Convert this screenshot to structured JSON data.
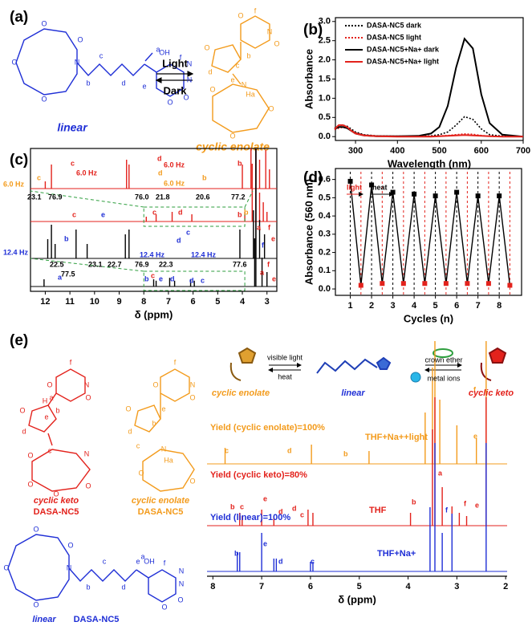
{
  "panel_a": {
    "label": "(a)",
    "linear": "linear",
    "cyclic_enolate": "cyclic enolate",
    "light": "Light",
    "dark": "Dark",
    "linear_atoms": [
      "N",
      "O",
      "O",
      "O",
      "O",
      "a",
      "OH",
      "f",
      "N",
      "N",
      "O",
      "O",
      "b",
      "c",
      "d",
      "e"
    ],
    "enolate_atoms": [
      "f",
      "N",
      "O",
      "O",
      "O",
      "d",
      "c",
      "b",
      "e",
      "N",
      "Ha",
      "O",
      "O",
      "O"
    ]
  },
  "chart_data": [
    {
      "type": "line",
      "panel_label": "(b)",
      "xlabel": "Wavelength (nm)",
      "ylabel": "Absorbance",
      "x": [
        250,
        260,
        270,
        280,
        290,
        300,
        320,
        350,
        400,
        450,
        480,
        500,
        520,
        540,
        560,
        580,
        600,
        620,
        650,
        700
      ],
      "xlim": [
        252,
        700
      ],
      "xticks": [
        300,
        400,
        500,
        600,
        700
      ],
      "ylim": [
        -0.1,
        3.1
      ],
      "yticks": [
        {
          "value": 0,
          "label": "0.0"
        },
        0.5,
        {
          "value": 1,
          "label": "1.0"
        },
        1.5,
        {
          "value": 2,
          "label": "2.0"
        },
        2.5,
        {
          "value": 3,
          "label": "3.0"
        }
      ],
      "legend": "upper-right",
      "series": [
        {
          "name": "DASA-NC5 dark",
          "color": "#000000",
          "dash": "dotted",
          "values": [
            0.22,
            0.28,
            0.3,
            0.27,
            0.2,
            0.12,
            0.05,
            0.02,
            0.01,
            0.01,
            0.02,
            0.05,
            0.12,
            0.3,
            0.52,
            0.45,
            0.2,
            0.05,
            0.01,
            0
          ]
        },
        {
          "name": "DASA-NC5 light",
          "color": "#e3221c",
          "dash": "dotted",
          "values": [
            0.18,
            0.22,
            0.24,
            0.22,
            0.16,
            0.1,
            0.04,
            0.02,
            0.01,
            0.01,
            0.01,
            0.02,
            0.03,
            0.05,
            0.07,
            0.06,
            0.03,
            0.01,
            0,
            0
          ]
        },
        {
          "name": "DASA-NC5+Na+ dark",
          "color": "#000000",
          "dash": "solid",
          "values": [
            0.2,
            0.25,
            0.25,
            0.22,
            0.15,
            0.08,
            0.03,
            0.01,
            0.01,
            0.02,
            0.08,
            0.25,
            0.8,
            1.8,
            2.55,
            2.3,
            1.1,
            0.35,
            0.05,
            0
          ]
        },
        {
          "name": "DASA-NC5+Na+ light",
          "color": "#e3221c",
          "dash": "solid",
          "values": [
            0.2,
            0.3,
            0.3,
            0.25,
            0.15,
            0.08,
            0.03,
            0.01,
            0,
            0,
            0,
            0.01,
            0.02,
            0.03,
            0.04,
            0.03,
            0.02,
            0.01,
            0,
            0
          ]
        }
      ]
    },
    {
      "type": "spectrum",
      "panel_label": "(c)",
      "xlabel": "δ (ppm)",
      "xlim": [
        12.6,
        2.6
      ],
      "xticks": [
        12,
        11,
        10,
        9,
        8,
        7,
        6,
        5,
        4,
        3
      ],
      "series": [
        {
          "color": "#e3221c",
          "x": [
            12.0,
            11.75,
            8.7,
            8.6,
            4.0,
            3.65,
            3.45,
            3.3,
            3.05,
            2.9
          ],
          "values": [
            1.5,
            5,
            6,
            5,
            5,
            20,
            30,
            6,
            8,
            4
          ]
        },
        {
          "color": "#e3221c",
          "x": [
            7.9,
            7.5,
            6.85,
            6.05,
            3.9,
            3.6,
            3.45,
            3.3,
            3.15,
            3.0
          ],
          "values": [
            1,
            1.5,
            2,
            1.5,
            2,
            12,
            30,
            6,
            4,
            2
          ]
        },
        {
          "color": "#000000",
          "x": [
            11.9,
            11.75,
            11.6,
            10.75,
            10.3,
            8.75,
            8.6,
            4.1,
            3.55,
            3.45,
            3.3,
            3.1
          ],
          "values": [
            4,
            7,
            3,
            6,
            3,
            5,
            6,
            6,
            10,
            30,
            8,
            5
          ]
        },
        {
          "color": "#000000",
          "x": [
            12.05,
            7.6,
            7.5,
            6.95,
            6.75,
            6.1,
            5.95,
            3.5,
            3.45,
            3.2,
            3.0
          ],
          "values": [
            1.5,
            1.5,
            1.2,
            1.8,
            1.2,
            1.5,
            1.2,
            10,
            30,
            6,
            3
          ]
        }
      ],
      "annotations": [
        "6.0 Hz",
        "c",
        "c",
        "6.0 Hz",
        "d",
        "6.0 Hz",
        "d",
        "6.0 Hz",
        "b",
        "b",
        "23.1",
        "76.9",
        "76.0",
        "21.8",
        "20.6",
        "77.2",
        "c",
        "d",
        "b",
        "12.4 Hz",
        "b",
        "c",
        "e",
        "12.4 Hz",
        "d",
        "c",
        "12.4 Hz",
        "b",
        "22.5",
        "77.5",
        "23.1",
        "22.7",
        "76.9",
        "22.3",
        "77.6",
        "a",
        "b",
        "c",
        "e",
        "d",
        "d",
        "c",
        "a",
        "f",
        "e",
        "f",
        "a",
        "f",
        "e"
      ]
    },
    {
      "type": "cycles",
      "panel_label": "(d)",
      "xlabel": "Cycles (n)",
      "ylabel": "Absorbance (560 nm)",
      "xlim": [
        0.3,
        9.05
      ],
      "xticks": [
        1,
        2,
        3,
        4,
        5,
        6,
        7,
        8
      ],
      "ylim": [
        -0.035,
        0.66
      ],
      "yticks": [
        {
          "value": 0,
          "label": "0.0"
        },
        0.1,
        0.2,
        0.3,
        0.4,
        0.5,
        0.6
      ],
      "series": [
        {
          "color": "#000000",
          "marker_colors": [
            "#000000",
            "#e3221c"
          ],
          "x": [
            1,
            1.5,
            2,
            2.5,
            3,
            3.5,
            4,
            4.5,
            5,
            5.5,
            6,
            6.5,
            7,
            7.5,
            8,
            8.5
          ],
          "values": [
            0.59,
            0.02,
            0.57,
            0.03,
            0.53,
            0.03,
            0.52,
            0.03,
            0.51,
            0.03,
            0.53,
            0.03,
            0.51,
            0.03,
            0.51,
            0.02
          ]
        }
      ],
      "annotations": [
        "light",
        "heat"
      ]
    },
    {
      "type": "spectrum",
      "panel_label": "(e)",
      "xlabel": "δ (ppm)",
      "xlim": [
        8.12,
        1.97
      ],
      "xticks": [
        8,
        7,
        6,
        5,
        4,
        3,
        2
      ],
      "series": [
        {
          "color": "#f39b1c",
          "x": [
            7.75,
            5.98,
            4.8,
            3.65,
            3.5,
            3.45,
            3.35,
            3.0,
            2.6,
            2.4
          ],
          "values": [
            5,
            6,
            4,
            16,
            30,
            40,
            20,
            12,
            8,
            40
          ]
        },
        {
          "color": "#e3221c",
          "x": [
            7.45,
            7.4,
            7.0,
            6.75,
            6.05,
            5.95,
            3.95,
            3.5,
            3.45,
            3.3,
            3.1,
            2.95,
            2.8,
            2.4
          ],
          "values": [
            4,
            3,
            5,
            3,
            5,
            4,
            4,
            30,
            40,
            12,
            6,
            4,
            3,
            40
          ]
        },
        {
          "color": "#1f2fd6",
          "x": [
            7.5,
            7.45,
            7.0,
            6.75,
            6.7,
            6.0,
            5.95,
            3.55,
            3.45,
            3.3,
            3.1,
            2.4
          ],
          "values": [
            6,
            6,
            12,
            4,
            4,
            3,
            3,
            20,
            40,
            12,
            18,
            40
          ]
        }
      ],
      "annotations": [
        "Yield (cyclic enolate)=100%",
        "THF+Na++light",
        "c",
        "d",
        "b",
        "e",
        "f",
        "Yield (cyclic keto)=80%",
        "THF",
        "b",
        "c",
        "e",
        "d",
        "d",
        "c",
        "b",
        "a",
        "f",
        "e",
        "Yield (linear)=100%",
        "THF+Na+",
        "b",
        "e",
        "d",
        "c",
        "f"
      ]
    }
  ],
  "panel_e": {
    "scheme": [
      "cyclic enolate",
      "visible light",
      "heat",
      "linear",
      "crown ether",
      "metal ions",
      "cyclic keto"
    ],
    "structures": [
      "cyclic keto",
      "DASA-NC5",
      "cyclic enolate",
      "DASA-NC5",
      "linear",
      "DASA-NC5"
    ],
    "keto_atoms": [
      "f",
      "N",
      "O",
      "O",
      "a",
      "H",
      "b",
      "e",
      "O",
      "d",
      "c",
      "N",
      "O",
      "O",
      "O",
      "O"
    ],
    "enolate_atoms": [
      "f",
      "N",
      "O",
      "O",
      "e",
      "b",
      "O",
      "d",
      "c",
      "N",
      "Ha",
      "O",
      "O"
    ],
    "linear_atoms": [
      "N",
      "O",
      "O",
      "O",
      "O",
      "a",
      "OH",
      "f",
      "N",
      "N",
      "O",
      "O",
      "c",
      "b",
      "d",
      "e"
    ]
  }
}
